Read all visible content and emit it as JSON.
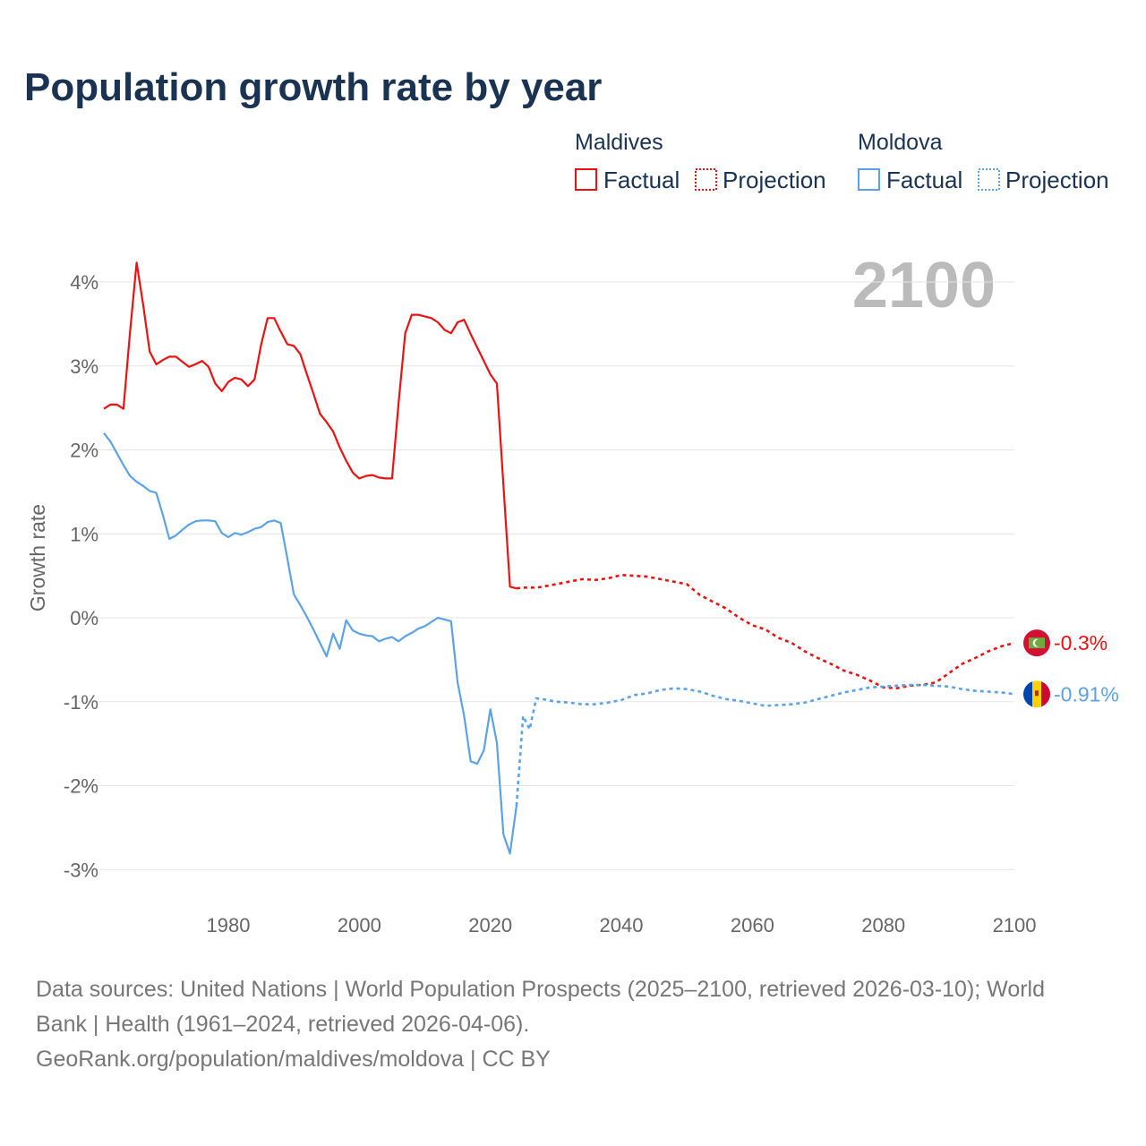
{
  "chart_data": {
    "type": "line",
    "title": "Population growth rate by year",
    "ylabel": "Growth rate",
    "xlabel": "",
    "ylim": [
      -3,
      4
    ],
    "xlim": [
      1961,
      2100
    ],
    "y_ticks": [
      4,
      3,
      2,
      1,
      0,
      -1,
      -2,
      -3
    ],
    "y_tick_labels": [
      "4%",
      "3%",
      "2%",
      "1%",
      "0%",
      "-1%",
      "-2%",
      "-3%"
    ],
    "x_ticks": [
      1980,
      2000,
      2020,
      2040,
      2060,
      2080,
      2100
    ],
    "x_tick_labels": [
      "1980",
      "2000",
      "2020",
      "2040",
      "2060",
      "2080",
      "2100"
    ],
    "grid": "horizontal",
    "current_year_label": "2100",
    "legend": {
      "placement": "top-right",
      "groups": [
        {
          "country": "Maldives",
          "factual": "Factual",
          "projection": "Projection"
        },
        {
          "country": "Moldova",
          "factual": "Factual",
          "projection": "Projection"
        }
      ]
    },
    "series": [
      {
        "name": "Maldives",
        "color": "#ee1111",
        "end_label": "-0.3%",
        "factual_start_year": 1961,
        "factual": [
          2.49,
          2.54,
          2.54,
          2.49,
          3.4,
          4.23,
          3.73,
          3.17,
          3.02,
          3.07,
          3.11,
          3.11,
          3.05,
          2.99,
          3.02,
          3.06,
          2.99,
          2.79,
          2.7,
          2.81,
          2.86,
          2.84,
          2.76,
          2.84,
          3.25,
          3.57,
          3.57,
          3.41,
          3.26,
          3.24,
          3.14,
          2.9,
          2.67,
          2.43,
          2.33,
          2.22,
          2.03,
          1.87,
          1.73,
          1.66,
          1.69,
          1.7,
          1.67,
          1.66,
          1.66,
          2.56,
          3.39,
          3.61,
          3.61,
          3.59,
          3.57,
          3.52,
          3.43,
          3.39,
          3.52,
          3.55,
          3.38,
          3.22,
          3.06,
          2.9,
          2.79,
          1.58,
          0.37,
          0.35
        ],
        "projection": [
          [
            2024,
            0.35
          ],
          [
            2025,
            0.36
          ],
          [
            2026,
            0.36
          ],
          [
            2027,
            0.36
          ],
          [
            2028,
            0.37
          ],
          [
            2030,
            0.4
          ],
          [
            2032,
            0.43
          ],
          [
            2034,
            0.46
          ],
          [
            2036,
            0.45
          ],
          [
            2038,
            0.47
          ],
          [
            2040,
            0.51
          ],
          [
            2042,
            0.5
          ],
          [
            2044,
            0.49
          ],
          [
            2046,
            0.46
          ],
          [
            2048,
            0.43
          ],
          [
            2050,
            0.4
          ],
          [
            2052,
            0.27
          ],
          [
            2054,
            0.19
          ],
          [
            2056,
            0.11
          ],
          [
            2058,
            0.0
          ],
          [
            2060,
            -0.09
          ],
          [
            2062,
            -0.14
          ],
          [
            2064,
            -0.24
          ],
          [
            2066,
            -0.3
          ],
          [
            2068,
            -0.4
          ],
          [
            2070,
            -0.48
          ],
          [
            2072,
            -0.55
          ],
          [
            2074,
            -0.63
          ],
          [
            2076,
            -0.68
          ],
          [
            2078,
            -0.75
          ],
          [
            2080,
            -0.83
          ],
          [
            2082,
            -0.84
          ],
          [
            2084,
            -0.81
          ],
          [
            2086,
            -0.8
          ],
          [
            2088,
            -0.77
          ],
          [
            2090,
            -0.66
          ],
          [
            2092,
            -0.55
          ],
          [
            2094,
            -0.48
          ],
          [
            2096,
            -0.4
          ],
          [
            2098,
            -0.34
          ],
          [
            2100,
            -0.3
          ]
        ]
      },
      {
        "name": "Moldova",
        "color": "#5ba3e6",
        "end_label": "-0.91%",
        "factual_start_year": 1961,
        "factual": [
          2.2,
          2.1,
          1.96,
          1.82,
          1.69,
          1.62,
          1.57,
          1.51,
          1.49,
          1.23,
          0.94,
          0.98,
          1.05,
          1.11,
          1.15,
          1.16,
          1.16,
          1.15,
          1.01,
          0.96,
          1.01,
          0.99,
          1.02,
          1.06,
          1.08,
          1.14,
          1.16,
          1.13,
          0.71,
          0.28,
          0.15,
          0.01,
          -0.14,
          -0.3,
          -0.46,
          -0.19,
          -0.37,
          -0.03,
          -0.15,
          -0.19,
          -0.21,
          -0.22,
          -0.28,
          -0.25,
          -0.23,
          -0.28,
          -0.22,
          -0.18,
          -0.13,
          -0.1,
          -0.05,
          0.0,
          -0.02,
          -0.04,
          -0.77,
          -1.17,
          -1.71,
          -1.74,
          -1.58,
          -1.09,
          -1.49,
          -2.58,
          -2.81,
          -2.24
        ],
        "projection": [
          [
            2024,
            -2.24
          ],
          [
            2025,
            -1.17
          ],
          [
            2026,
            -1.33
          ],
          [
            2027,
            -0.96
          ],
          [
            2028,
            -0.97
          ],
          [
            2030,
            -1.0
          ],
          [
            2032,
            -1.01
          ],
          [
            2034,
            -1.03
          ],
          [
            2036,
            -1.03
          ],
          [
            2038,
            -1.01
          ],
          [
            2040,
            -0.98
          ],
          [
            2042,
            -0.92
          ],
          [
            2044,
            -0.9
          ],
          [
            2046,
            -0.86
          ],
          [
            2048,
            -0.84
          ],
          [
            2050,
            -0.85
          ],
          [
            2052,
            -0.88
          ],
          [
            2054,
            -0.93
          ],
          [
            2056,
            -0.97
          ],
          [
            2058,
            -0.99
          ],
          [
            2060,
            -1.02
          ],
          [
            2062,
            -1.05
          ],
          [
            2064,
            -1.04
          ],
          [
            2066,
            -1.03
          ],
          [
            2068,
            -1.01
          ],
          [
            2070,
            -0.97
          ],
          [
            2072,
            -0.93
          ],
          [
            2074,
            -0.89
          ],
          [
            2076,
            -0.86
          ],
          [
            2078,
            -0.83
          ],
          [
            2080,
            -0.82
          ],
          [
            2082,
            -0.81
          ],
          [
            2084,
            -0.8
          ],
          [
            2086,
            -0.8
          ],
          [
            2088,
            -0.81
          ],
          [
            2090,
            -0.82
          ],
          [
            2092,
            -0.85
          ],
          [
            2094,
            -0.87
          ],
          [
            2096,
            -0.88
          ],
          [
            2098,
            -0.89
          ],
          [
            2100,
            -0.91
          ]
        ]
      }
    ]
  },
  "footer": {
    "line1": "Data sources: United Nations | World Population Prospects (2025–2100, retrieved 2026-03-10); World",
    "line2": "Bank | Health (1961–2024, retrieved 2026-04-06).",
    "line3": "GeoRank.org/population/maldives/moldova | CC BY"
  }
}
